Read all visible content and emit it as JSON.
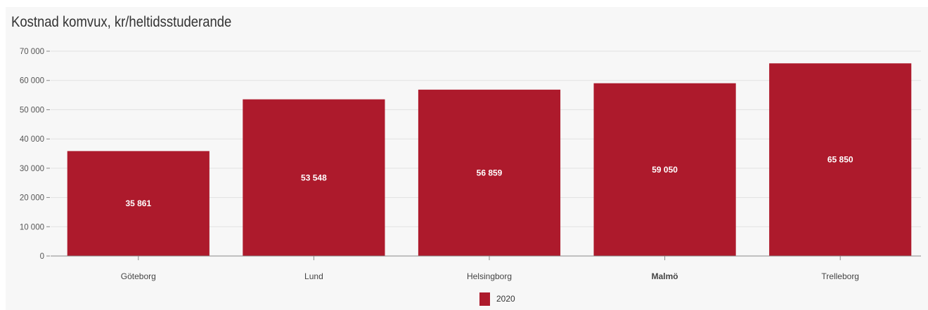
{
  "chart_data": {
    "type": "bar",
    "title": "Kostnad komvux, kr/heltidsstuderande",
    "categories": [
      "Göteborg",
      "Lund",
      "Helsingborg",
      "Malmö",
      "Trelleborg"
    ],
    "series": [
      {
        "name": "2020",
        "values": [
          35861,
          53548,
          56859,
          59050,
          65850
        ]
      }
    ],
    "data_labels": [
      "35 861",
      "53 548",
      "56 859",
      "59 050",
      "65 850"
    ],
    "y_ticks": [
      0,
      10000,
      20000,
      30000,
      40000,
      50000,
      60000,
      70000
    ],
    "y_tick_labels": [
      "0",
      "10 000",
      "20 000",
      "30 000",
      "40 000",
      "50 000",
      "60 000",
      "70 000"
    ],
    "ylim": [
      0,
      70000
    ],
    "grid": true,
    "legend_position": "bottom",
    "bold_category": "Malmö",
    "colors": {
      "bar": "#ad1a2c",
      "grid": "#e2e2e2",
      "background": "#f7f7f7"
    }
  }
}
